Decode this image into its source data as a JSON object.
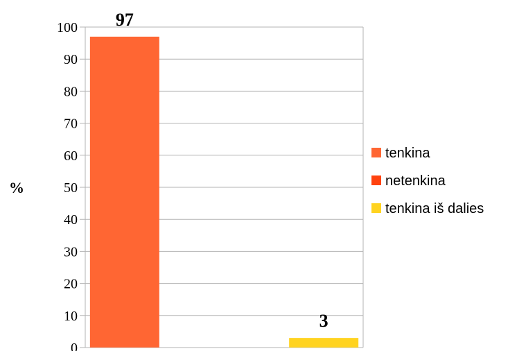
{
  "chart_data": {
    "type": "bar",
    "ylabel": "%",
    "ylim": [
      0,
      100
    ],
    "yticks": [
      0,
      10,
      20,
      30,
      40,
      50,
      60,
      70,
      80,
      90,
      100
    ],
    "grid": true,
    "legend_position": "right",
    "series": [
      {
        "name": "tenkina",
        "color": "#ff6633",
        "value": 97,
        "label": "97"
      },
      {
        "name": "netenkina",
        "color": "#ff420e",
        "value": 0,
        "label": ""
      },
      {
        "name": "tenkina iš dalies",
        "color": "#ffd320",
        "value": 3,
        "label": "3"
      }
    ]
  }
}
